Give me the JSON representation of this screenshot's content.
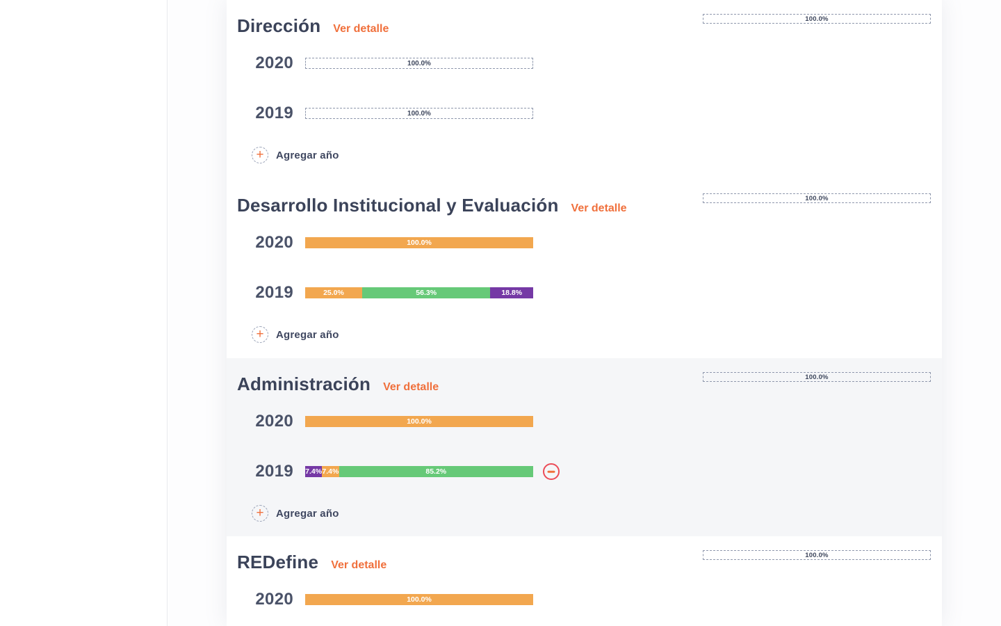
{
  "labels": {
    "detail_link": "Ver detalle",
    "add_year": "Agregar año"
  },
  "icons": {
    "plus": "+"
  },
  "colors": {
    "orange": "#f2a74f",
    "green": "#66c978",
    "purple": "#7539a5",
    "accent": "#f0703c",
    "danger": "#ec4b57",
    "title_text": "#3b4359",
    "highlight_bg": "#f5f6f8"
  },
  "sections": [
    {
      "title": "Dirección",
      "annual_target": "100.0%",
      "highlighted": false,
      "has_add_year": true,
      "years": [
        {
          "year": "2020",
          "pending": true,
          "value": "100.0%"
        },
        {
          "year": "2019",
          "pending": true,
          "value": "100.0%"
        }
      ]
    },
    {
      "title": "Desarrollo Institucional y Evaluación",
      "annual_target": "100.0%",
      "highlighted": false,
      "has_add_year": true,
      "years": [
        {
          "year": "2020",
          "segments": [
            {
              "color": "orange",
              "pct": 100,
              "label": "100.0%"
            }
          ]
        },
        {
          "year": "2019",
          "segments": [
            {
              "color": "orange",
              "pct": 25.0,
              "label": "25.0%"
            },
            {
              "color": "green",
              "pct": 56.3,
              "label": "56.3%"
            },
            {
              "color": "purple",
              "pct": 18.8,
              "label": "18.8%"
            }
          ]
        }
      ]
    },
    {
      "title": "Administración",
      "annual_target": "100.0%",
      "highlighted": true,
      "has_add_year": true,
      "years": [
        {
          "year": "2020",
          "segments": [
            {
              "color": "orange",
              "pct": 100,
              "label": "100.0%"
            }
          ]
        },
        {
          "year": "2019",
          "removable": true,
          "segments": [
            {
              "color": "purple",
              "pct": 7.4,
              "label": "7.4%"
            },
            {
              "color": "orange",
              "pct": 7.4,
              "label": "7.4%"
            },
            {
              "color": "green",
              "pct": 85.2,
              "label": "85.2%"
            }
          ]
        }
      ]
    },
    {
      "title": "REDefine",
      "annual_target": "100.0%",
      "highlighted": false,
      "has_add_year": false,
      "years": [
        {
          "year": "2020",
          "segments": [
            {
              "color": "orange",
              "pct": 100,
              "label": "100.0%"
            }
          ]
        }
      ]
    }
  ]
}
